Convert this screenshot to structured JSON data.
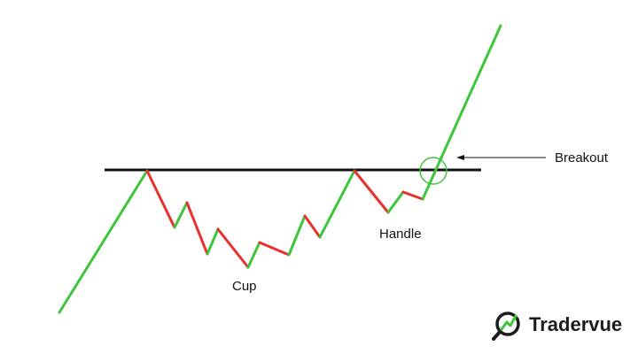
{
  "diagram": {
    "labels": {
      "cup": "Cup",
      "handle": "Handle",
      "breakout": "Breakout"
    }
  },
  "brand": {
    "name": "Tradervue",
    "logo_icon": "magnifier-chart-icon"
  },
  "colors": {
    "up": "#3ec63a",
    "down": "#e8302c",
    "resistance": "#111111",
    "circle": "#3ec63a"
  }
}
